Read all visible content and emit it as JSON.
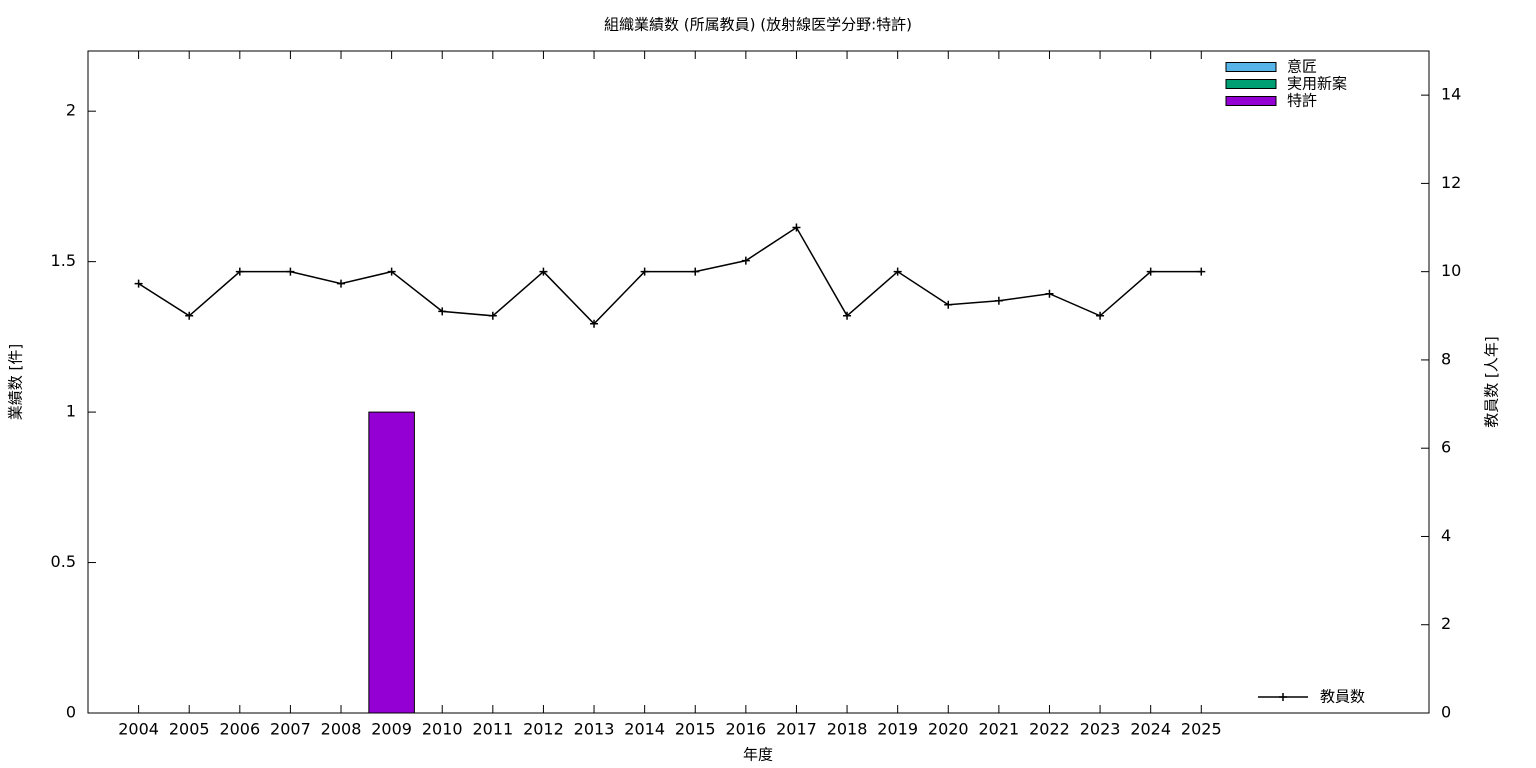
{
  "chart_data": {
    "type": "bar",
    "title": "組織業績数 (所属教員) (放射線医学分野:特許)",
    "x_label": "年度",
    "y_label": "業績数 [件]",
    "y2_label": "教員数 [人年]",
    "categories": [
      "2004",
      "2005",
      "2006",
      "2007",
      "2008",
      "2009",
      "2010",
      "2011",
      "2012",
      "2013",
      "2014",
      "2015",
      "2016",
      "2017",
      "2018",
      "2019",
      "2020",
      "2021",
      "2022",
      "2023",
      "2024",
      "2025"
    ],
    "series": [
      {
        "name": "意匠",
        "color": "#56b4e9",
        "values": [
          0,
          0,
          0,
          0,
          0,
          0,
          0,
          0,
          0,
          0,
          0,
          0,
          0,
          0,
          0,
          0,
          0,
          0,
          0,
          0,
          0,
          0
        ]
      },
      {
        "name": "実用新案",
        "color": "#009e73",
        "values": [
          0,
          0,
          0,
          0,
          0,
          0,
          0,
          0,
          0,
          0,
          0,
          0,
          0,
          0,
          0,
          0,
          0,
          0,
          0,
          0,
          0,
          0
        ]
      },
      {
        "name": "特許",
        "color": "#9400d3",
        "values": [
          0,
          0,
          0,
          0,
          0,
          1,
          0,
          0,
          0,
          0,
          0,
          0,
          0,
          0,
          0,
          0,
          0,
          0,
          0,
          0,
          0,
          0
        ]
      },
      {
        "name": "教員数",
        "color": "#000000",
        "type": "line",
        "axis": "y2",
        "values": [
          9.73,
          9,
          10,
          10,
          9.73,
          10,
          9.1,
          9,
          10,
          8.82,
          10,
          10,
          10.25,
          11,
          9,
          10,
          9.25,
          9.34,
          9.5,
          9,
          10,
          10
        ]
      }
    ],
    "ylim": [
      0,
      2.2
    ],
    "yticks": [
      0,
      0.5,
      1,
      1.5,
      2
    ],
    "y2lim": [
      0,
      15
    ],
    "y2ticks": [
      0,
      2,
      4,
      6,
      8,
      10,
      12,
      14
    ],
    "legend": "upper-right"
  }
}
